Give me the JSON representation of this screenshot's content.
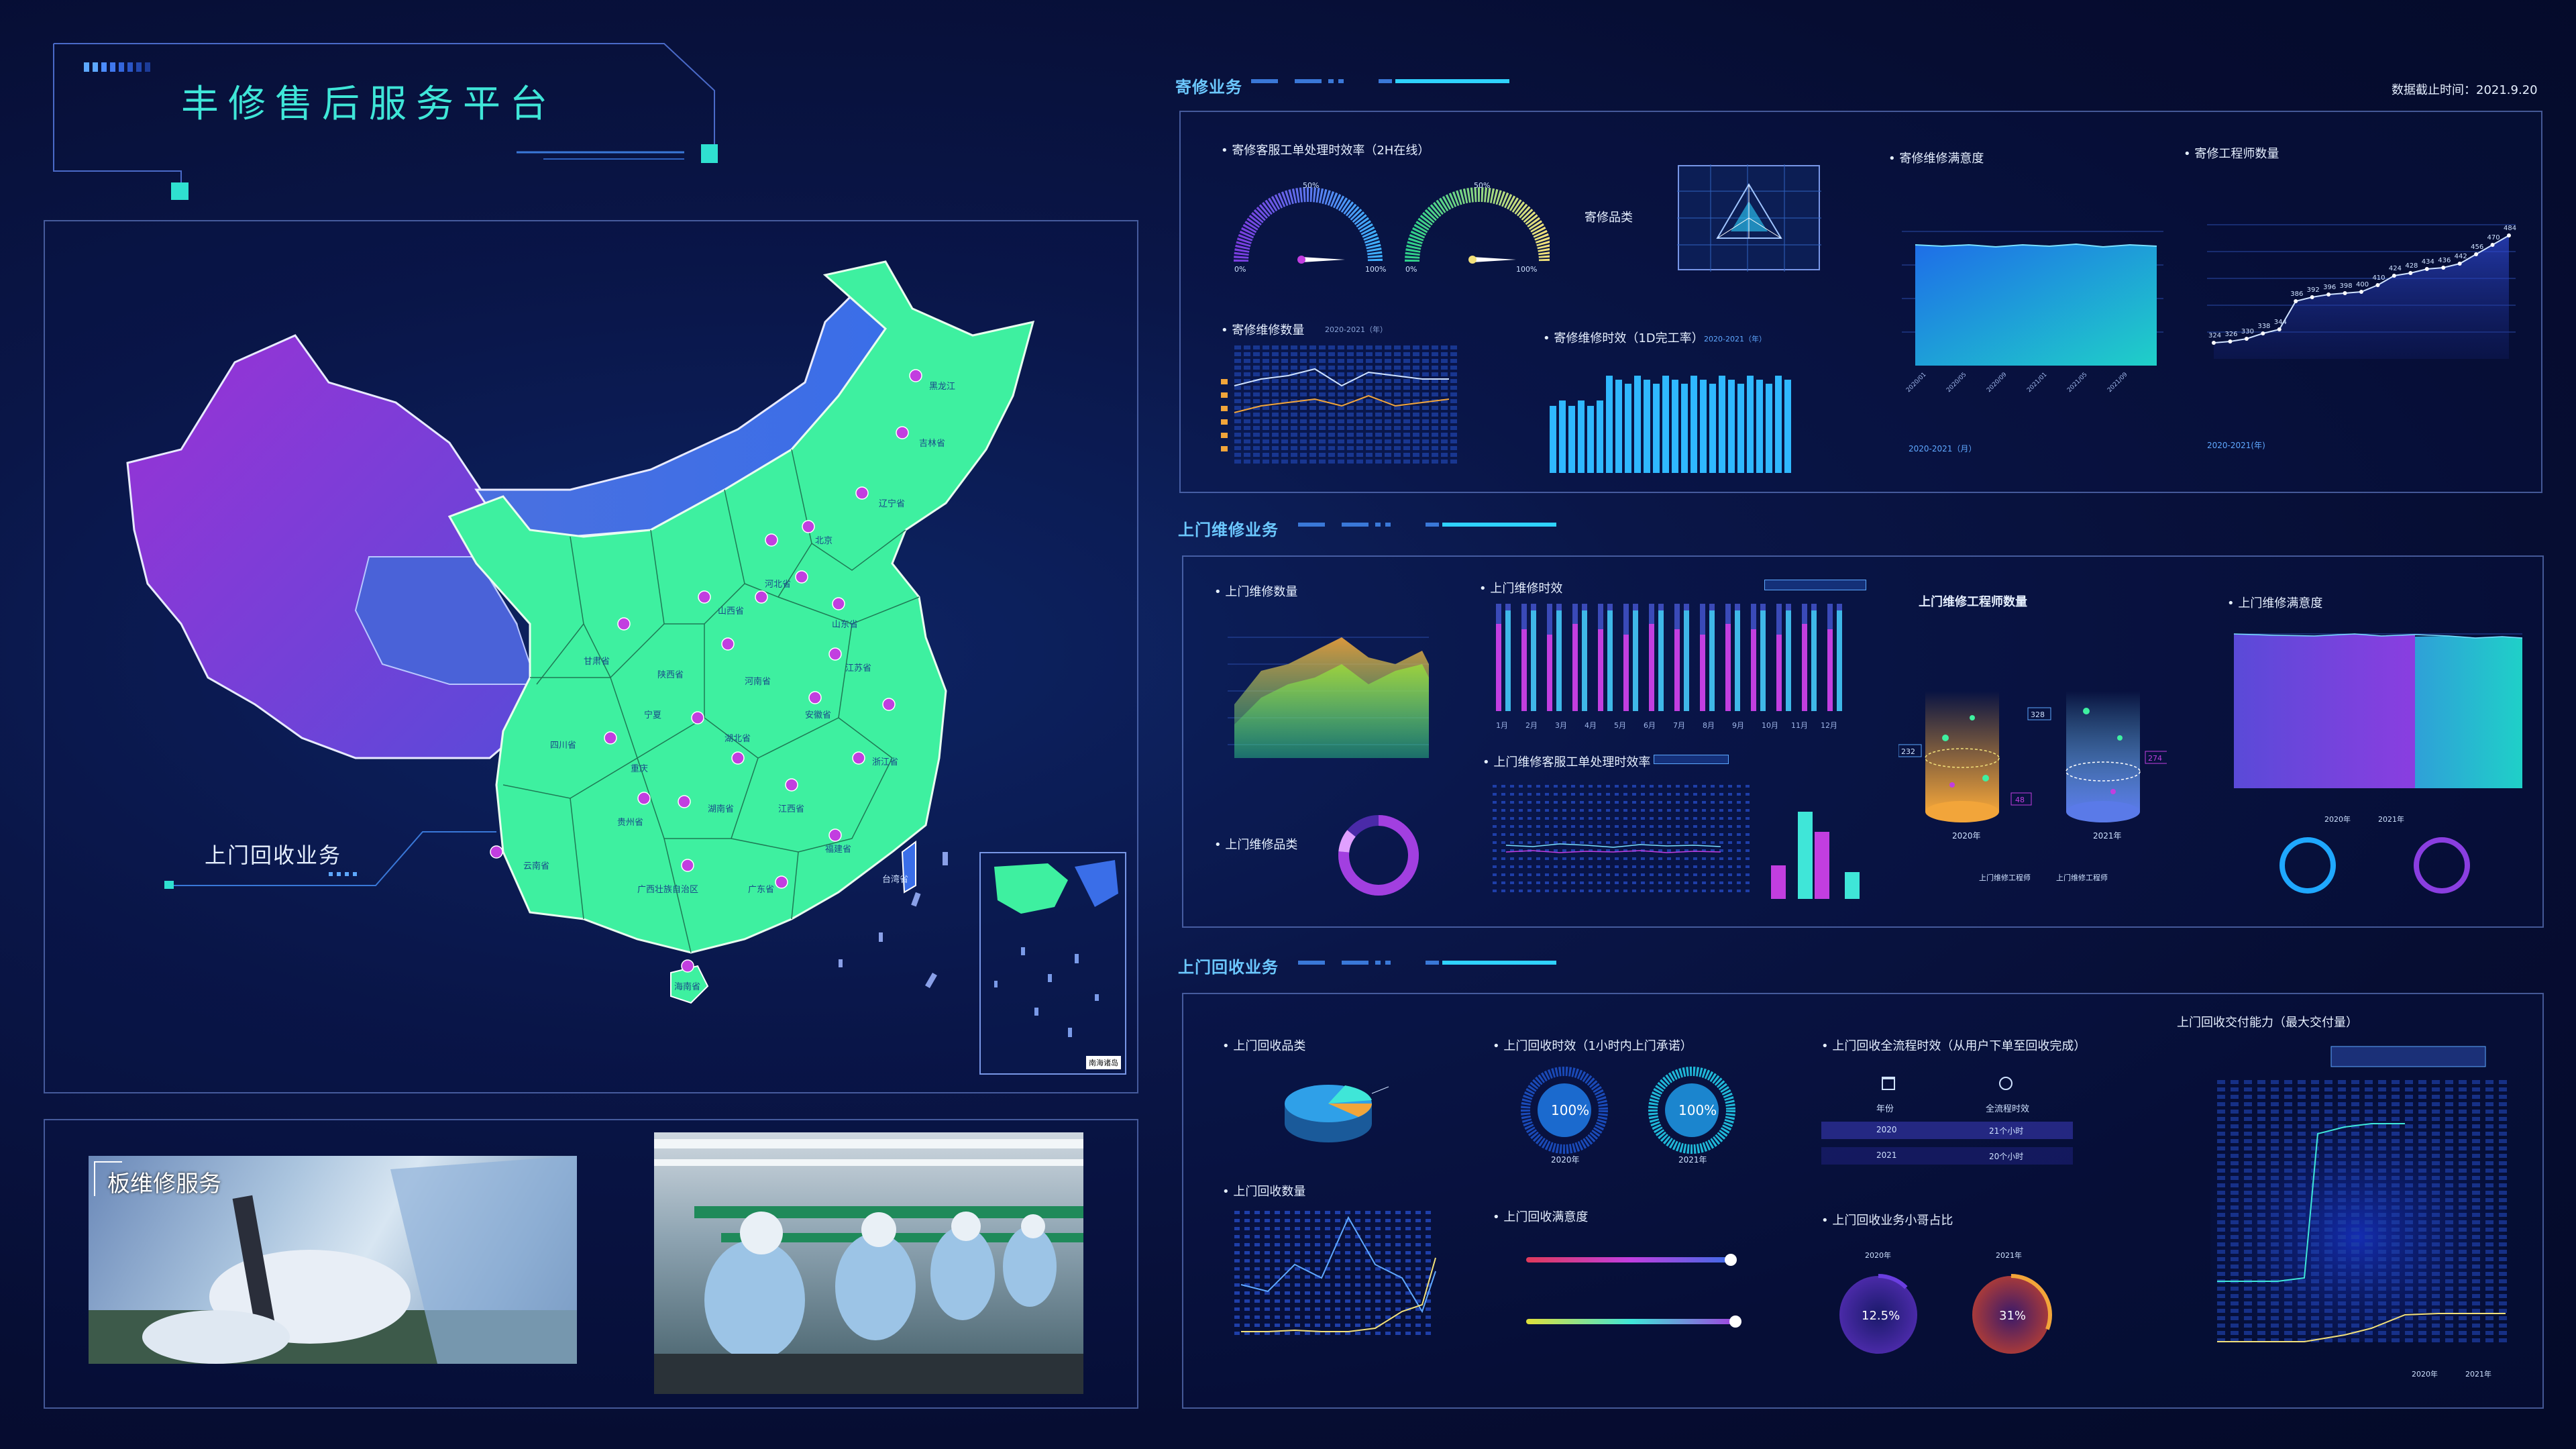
{
  "header": {
    "title": "丰修售后服务平台",
    "timestamp": "数据截止时间：2021.9.20"
  },
  "map": {
    "label": "上门回收业务",
    "provinces": [
      "黑龙江",
      "吉林省",
      "辽宁省",
      "北京",
      "河北省",
      "山西省",
      "山东省",
      "江苏省",
      "安徽省",
      "河南省",
      "陕西省",
      "甘肃省",
      "四川省",
      "重庆",
      "湖北省",
      "湖南省",
      "浙江省",
      "江西省",
      "福建省",
      "贵州省",
      "云南省",
      "广西壮族自治区",
      "广东省",
      "海南省",
      "台湾省",
      "宁夏"
    ],
    "inset_label": "南海诸岛"
  },
  "photos": {
    "board_label": "板维修服务"
  },
  "mail": {
    "title": "寄修业务",
    "efficiency": {
      "label": "寄修客服工单处理时效率（2H在线）",
      "g1_top": "50%",
      "g1_min": "0%",
      "g1_max": "100%",
      "g2_top": "50%",
      "g2_min": "0%",
      "g2_max": "100%"
    },
    "category": {
      "label": "寄修品类"
    },
    "satisfaction": {
      "label": "寄修维修满意度",
      "footer": "2020-2021（月）"
    },
    "engineers": {
      "label": "寄修工程师数量",
      "footer": "2020-2021(年)",
      "values": [
        "324",
        "326",
        "330",
        "338",
        "344",
        "386",
        "392",
        "396",
        "398",
        "400",
        "410",
        "424",
        "428",
        "434",
        "436",
        "442",
        "456",
        "470",
        "484"
      ]
    },
    "count": {
      "label": "寄修维修数量",
      "sub": "2020-2021（年）"
    },
    "timeliness": {
      "label": "寄修维修时效（1D完工率）",
      "sub": "2020-2021（年）"
    }
  },
  "onsite": {
    "title": "上门维修业务",
    "count": {
      "label": "上门维修数量"
    },
    "timeliness": {
      "label": "上门维修时效",
      "months": [
        "1月",
        "2月",
        "3月",
        "4月",
        "5月",
        "6月",
        "7月",
        "8月",
        "9月",
        "10月",
        "11月",
        "12月"
      ]
    },
    "engineers": {
      "label": "上门维修工程师数量",
      "y2020": "2020年",
      "y2021": "2021年",
      "v1": "232",
      "v2": "328",
      "v3": "274",
      "v4": "48",
      "legend1": "上门维修工程师",
      "legend2": "上门维修工程师"
    },
    "satisfaction": {
      "label": "上门维修满意度",
      "legend1": "2020年",
      "legend2": "2021年"
    },
    "category": {
      "label": "上门维修品类"
    },
    "ticket": {
      "label": "上门维修客服工单处理时效率"
    }
  },
  "recycle": {
    "title": "上门回收业务",
    "category": {
      "label": "上门回收品类"
    },
    "timeliness": {
      "label": "上门回收时效（1小时内上门承诺）",
      "v2020": "100%",
      "v2021": "100%",
      "y2020": "2020年",
      "y2021": "2021年"
    },
    "process": {
      "label": "上门回收全流程时效（从用户下单至回收完成）",
      "col1": "年份",
      "col2": "全流程时效",
      "r1c1": "2020",
      "r1c2": "21个小时",
      "r2c1": "2021",
      "r2c2": "20个小时"
    },
    "count": {
      "label": "上门回收数量"
    },
    "satisfaction": {
      "label": "上门回收满意度"
    },
    "ratio": {
      "label": "上门回收业务小哥占比",
      "y2020": "2020年",
      "y2021": "2021年",
      "v2020": "12.5%",
      "v2021": "31%"
    },
    "capacity": {
      "label": "上门回收交付能力（最大交付量）",
      "legend1": "2020年",
      "legend2": "2021年"
    }
  },
  "colors": {
    "accent": "#37e0c8",
    "cyan": "#2fd2ff",
    "green": "#3ef0a0",
    "purple": "#a23fe0",
    "panel_border": "#7896e6"
  }
}
